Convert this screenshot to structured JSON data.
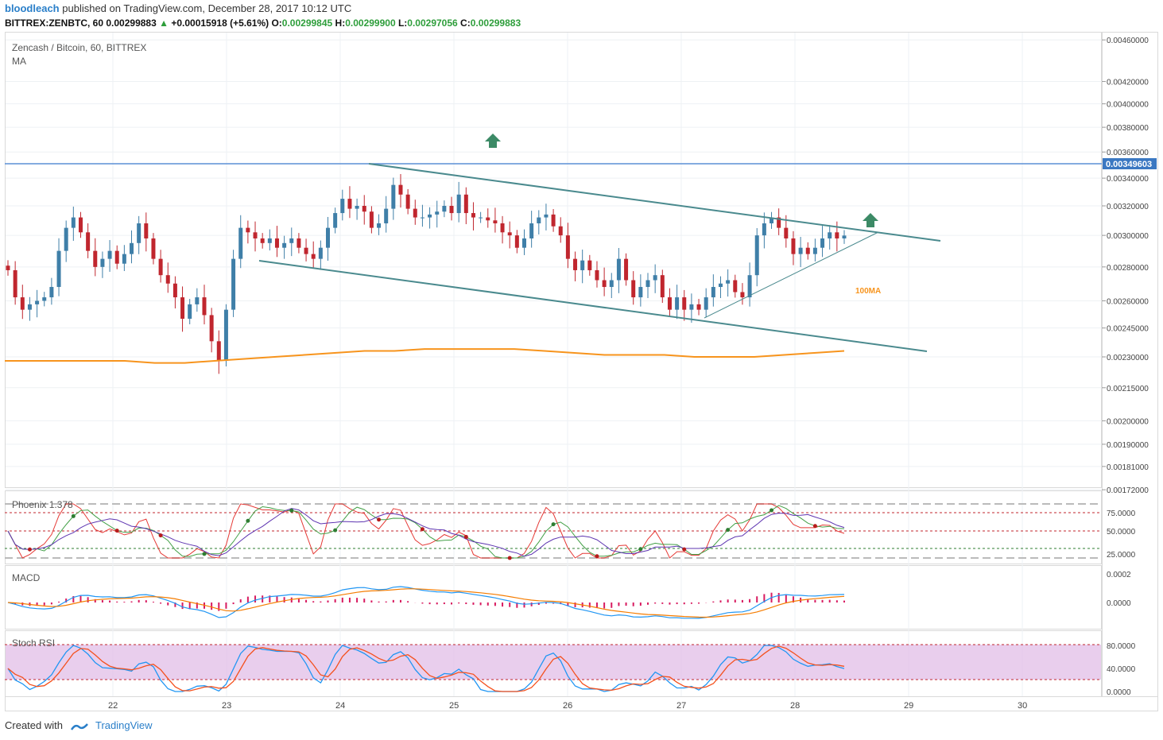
{
  "header": {
    "user": "bloodleach",
    "published_text": "published on TradingView.com, December 28, 2017 10:12 UTC",
    "symbol": "BITTREX:ZENBTC, 60",
    "last": "0.00299883",
    "change_arrow": "▲",
    "change": "+0.00015918 (+5.61%)",
    "o_label": "O:",
    "o_value": "0.00299845",
    "h_label": "H:",
    "h_value": "0.00299900",
    "l_label": "L:",
    "l_value": "0.00297056",
    "c_label": "C:",
    "c_value": "0.00299883"
  },
  "legend": {
    "title": "Zencash / Bitcoin, 60, BITTREX",
    "indicator": "MA"
  },
  "annotation_100ma": "100MA",
  "price_badge": "0.00349603",
  "footer": {
    "created_with": "Created with",
    "brand": "TradingView"
  },
  "colors": {
    "up": "#3f7fa8",
    "down": "#c0262e",
    "ma": "#f7941d",
    "channel": "#4a8a8e",
    "resistance": "#5b8fd6",
    "arrow": "#3c8a66",
    "badge": "#3b78c2"
  },
  "chart_data": [
    {
      "type": "candlestick",
      "title": "Zencash / Bitcoin, 60, BITTREX",
      "x_tick_labels": [
        "22",
        "23",
        "24",
        "25",
        "26",
        "27",
        "28",
        "29",
        "30"
      ],
      "y_tick_labels": [
        "0.00460000",
        "0.00420000",
        "0.00400000",
        "0.00380000",
        "0.00360000",
        "0.00340000",
        "0.00320000",
        "0.00300000",
        "0.00280000",
        "0.00260000",
        "0.00245000",
        "0.00230000",
        "0.00215000",
        "0.00200000",
        "0.00190000",
        "0.00181000",
        "0.00172000"
      ],
      "y_scale": "log",
      "resistance": 0.00349603,
      "close_series": [
        0.00278,
        0.00262,
        0.00255,
        0.00258,
        0.0026,
        0.00262,
        0.00268,
        0.0029,
        0.00305,
        0.00312,
        0.00302,
        0.0029,
        0.0028,
        0.00285,
        0.0029,
        0.00282,
        0.00288,
        0.00295,
        0.00308,
        0.00298,
        0.00285,
        0.00275,
        0.0027,
        0.00262,
        0.0025,
        0.00258,
        0.00262,
        0.00252,
        0.00238,
        0.00228,
        0.00255,
        0.00285,
        0.00305,
        0.00302,
        0.00298,
        0.00295,
        0.00298,
        0.00292,
        0.00295,
        0.00298,
        0.00292,
        0.00288,
        0.00285,
        0.00292,
        0.00305,
        0.00315,
        0.00325,
        0.00318,
        0.0032,
        0.00316,
        0.00305,
        0.00308,
        0.00318,
        0.00335,
        0.00328,
        0.00318,
        0.00312,
        0.00312,
        0.00314,
        0.00316,
        0.0032,
        0.00315,
        0.00328,
        0.00315,
        0.00312,
        0.00312,
        0.0031,
        0.00308,
        0.00302,
        0.003,
        0.00292,
        0.00298,
        0.00308,
        0.00312,
        0.00314,
        0.00306,
        0.003,
        0.00285,
        0.00278,
        0.00284,
        0.00278,
        0.00272,
        0.00268,
        0.00272,
        0.00285,
        0.00272,
        0.00262,
        0.00268,
        0.00272,
        0.00275,
        0.00262,
        0.00255,
        0.00262,
        0.00255,
        0.00258,
        0.00255,
        0.00262,
        0.00268,
        0.0027,
        0.00272,
        0.00265,
        0.00262,
        0.00275,
        0.003,
        0.00308,
        0.00312,
        0.00305,
        0.00298,
        0.00288,
        0.00292,
        0.00288,
        0.00292,
        0.00298,
        0.00302,
        0.00298,
        0.00299883
      ],
      "ma100": [
        0.00228,
        0.00228,
        0.00228,
        0.00228,
        0.00228,
        0.00227,
        0.00227,
        0.00228,
        0.00229,
        0.0023,
        0.00231,
        0.00232,
        0.00233,
        0.00233,
        0.00234,
        0.00234,
        0.00234,
        0.00234,
        0.00233,
        0.00232,
        0.00231,
        0.00231,
        0.00231,
        0.0023,
        0.0023,
        0.0023,
        0.00231,
        0.00232,
        0.00233
      ],
      "channel_upper": [
        [
          0.00349,
          "24.25"
        ],
        [
          0.00298,
          "29.25"
        ]
      ],
      "channel_lower": [
        [
          0.00283,
          "23.3"
        ],
        [
          0.00233,
          "29.1"
        ]
      ],
      "annotations": [
        "100MA"
      ]
    },
    {
      "type": "line",
      "title": "Phoenix 1.378",
      "y_tick_labels": [
        "75.0000",
        "50.0000",
        "25.0000"
      ],
      "ylim": [
        10,
        90
      ]
    },
    {
      "type": "bar",
      "title": "MACD",
      "y_tick_labels": [
        "0.0002",
        "0.0000"
      ]
    },
    {
      "type": "line",
      "title": "Stoch RSI",
      "y_tick_labels": [
        "80.0000",
        "40.0000",
        "0.0000"
      ],
      "ylim": [
        0,
        100
      ]
    }
  ]
}
